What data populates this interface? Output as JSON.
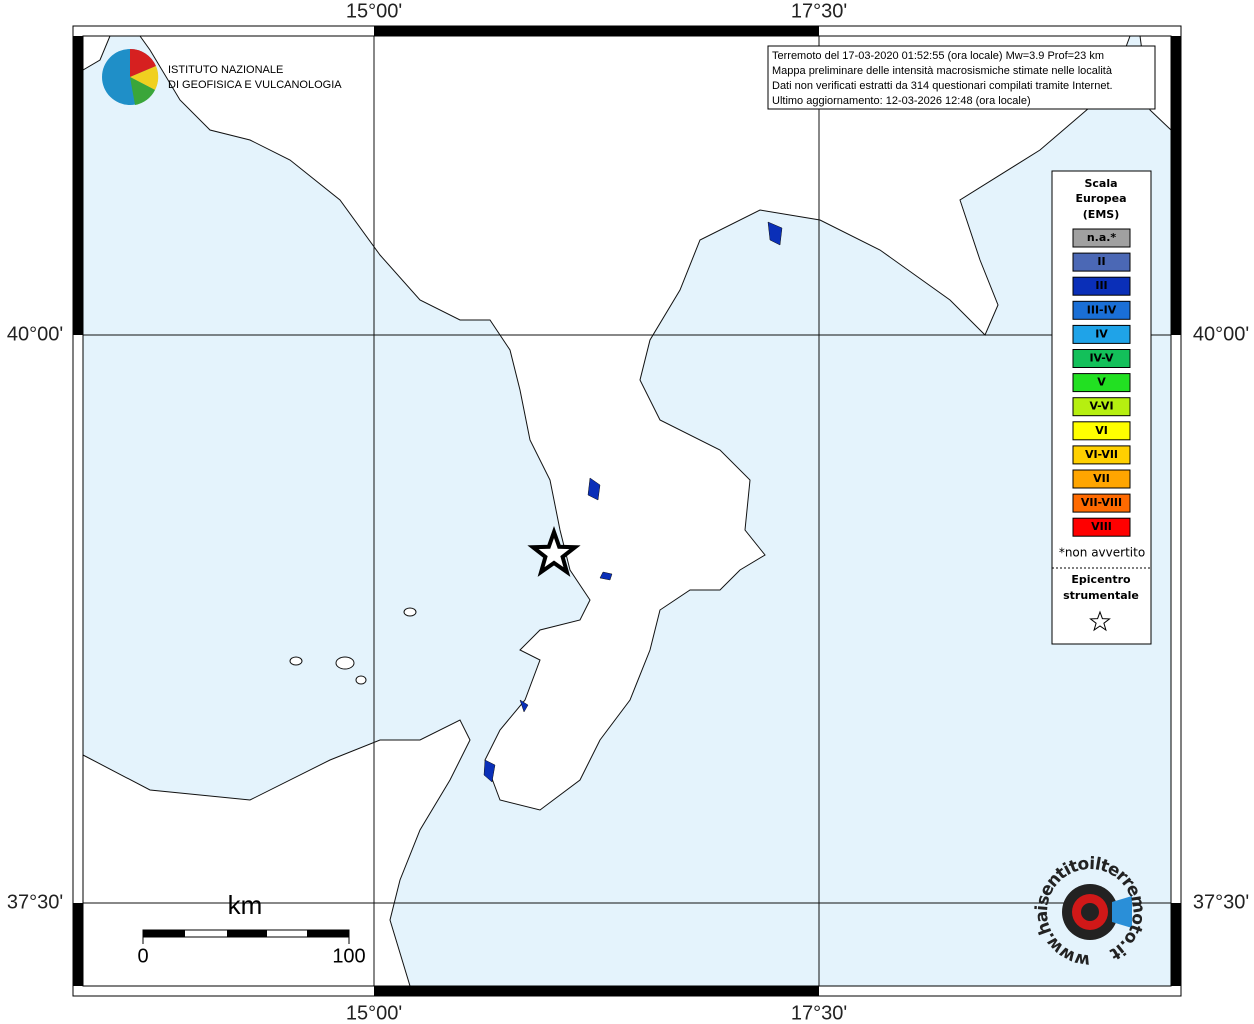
{
  "map": {
    "lon_labels": [
      "15°00'",
      "17°30'"
    ],
    "lat_labels": [
      "40°00'",
      "37°30'"
    ],
    "logo": {
      "line1": "ISTITUTO NAZIONALE",
      "line2": "DI GEOFISICA E VULCANOLOGIA"
    },
    "info": [
      "Terremoto del 17-03-2020 01:52:55 (ora locale) Mw=3.9 Prof=23 km",
      "Mappa preliminare delle intensità macrosismiche stimate nelle località",
      "Dati non verificati estratti da 314 questionari compilati tramite Internet.",
      "Ultimo aggiornamento: 12-03-2026 12:48 (ora locale)"
    ],
    "legend": {
      "title": [
        "Scala",
        "Europea",
        "(EMS)"
      ],
      "items": [
        {
          "label": "n.a.*",
          "color": "#a0a0a0"
        },
        {
          "label": "II",
          "color": "#4b68b5"
        },
        {
          "label": "III",
          "color": "#0a2fb8"
        },
        {
          "label": "III-IV",
          "color": "#1a6fd6"
        },
        {
          "label": "IV",
          "color": "#1fa3e8"
        },
        {
          "label": "IV-V",
          "color": "#13c05a"
        },
        {
          "label": "V",
          "color": "#22e022"
        },
        {
          "label": "V-VI",
          "color": "#b6ef10"
        },
        {
          "label": "VI",
          "color": "#ffff00"
        },
        {
          "label": "VI-VII",
          "color": "#ffd000"
        },
        {
          "label": "VII",
          "color": "#ffa500"
        },
        {
          "label": "VII-VIII",
          "color": "#ff6a00"
        },
        {
          "label": "VIII",
          "color": "#ff0000"
        }
      ],
      "note": "*non avvertito",
      "epicenter": [
        "Epicentro",
        "strumentale"
      ]
    },
    "scale": {
      "unit": "km",
      "start": "0",
      "end": "100"
    },
    "badge": "www.haisentitoilterremoto.it"
  }
}
